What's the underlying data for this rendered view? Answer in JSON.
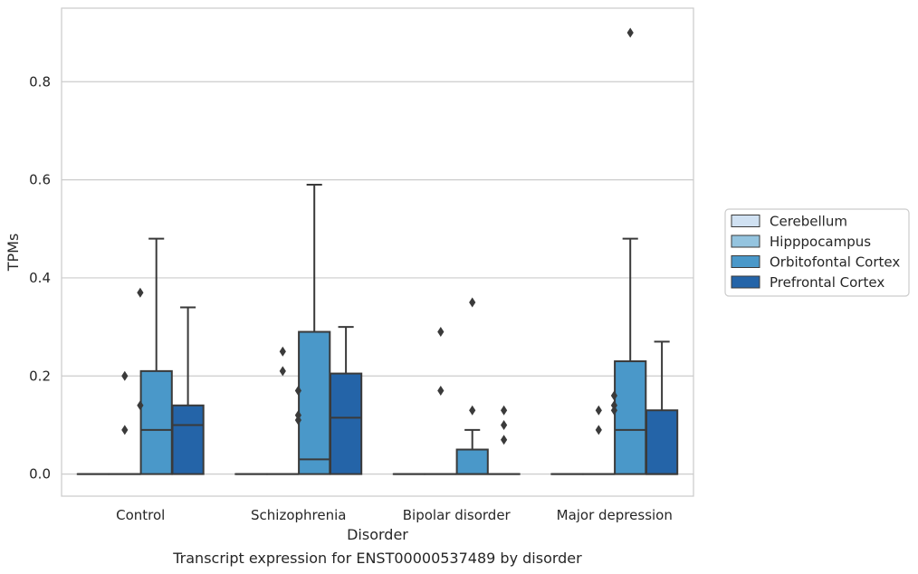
{
  "chart_data": {
    "type": "box",
    "title": "",
    "caption": "Transcript expression for ENST00000537489 by disorder",
    "xlabel": "Disorder",
    "ylabel": "TPMs",
    "ylim": [
      -0.045,
      0.95
    ],
    "yticks": [
      0.0,
      0.2,
      0.4,
      0.6,
      0.8
    ],
    "ytick_labels": [
      "0.0",
      "0.2",
      "0.4",
      "0.6",
      "0.8"
    ],
    "grid": "horizontal",
    "legend_position": "right",
    "categories": [
      "Control",
      "Schizophrenia",
      "Bipolar disorder",
      "Major depression"
    ],
    "series": [
      {
        "name": "Cerebellum",
        "color": "#d0e1f2",
        "boxes": [
          {
            "min": 0,
            "q1": 0,
            "median": 0,
            "q3": 0,
            "max": 0,
            "outliers": []
          },
          {
            "min": 0,
            "q1": 0,
            "median": 0,
            "q3": 0,
            "max": 0,
            "outliers": []
          },
          {
            "min": 0,
            "q1": 0,
            "median": 0,
            "q3": 0,
            "max": 0,
            "outliers": []
          },
          {
            "min": 0,
            "q1": 0,
            "median": 0,
            "q3": 0,
            "max": 0,
            "outliers": []
          }
        ]
      },
      {
        "name": "Hipppocampus",
        "color": "#94c4df",
        "boxes": [
          {
            "min": 0,
            "q1": 0,
            "median": 0,
            "q3": 0,
            "max": 0,
            "outliers": [
              0.09,
              0.2
            ]
          },
          {
            "min": 0,
            "q1": 0,
            "median": 0,
            "q3": 0,
            "max": 0,
            "outliers": [
              0.21,
              0.25
            ]
          },
          {
            "min": 0,
            "q1": 0,
            "median": 0,
            "q3": 0,
            "max": 0,
            "outliers": [
              0.17,
              0.29
            ]
          },
          {
            "min": 0,
            "q1": 0,
            "median": 0,
            "q3": 0,
            "max": 0,
            "outliers": [
              0.09,
              0.13
            ]
          }
        ]
      },
      {
        "name": "Orbitofontal Cortex",
        "color": "#4a98c9",
        "boxes": [
          {
            "min": 0,
            "q1": 0,
            "median": 0.09,
            "q3": 0.21,
            "max": 0.48,
            "outliers": []
          },
          {
            "min": 0,
            "q1": 0,
            "median": 0.03,
            "q3": 0.29,
            "max": 0.59,
            "outliers": []
          },
          {
            "min": 0,
            "q1": 0,
            "median": 0,
            "q3": 0.05,
            "max": 0.09,
            "outliers": [
              0.13,
              0.35
            ]
          },
          {
            "min": 0,
            "q1": 0,
            "median": 0.09,
            "q3": 0.23,
            "max": 0.48,
            "outliers": [
              0.9
            ]
          }
        ]
      },
      {
        "name": "Prefrontal Cortex",
        "color": "#2464a8",
        "boxes": [
          {
            "min": 0,
            "q1": 0,
            "median": 0.1,
            "q3": 0.14,
            "max": 0.34,
            "outliers": []
          },
          {
            "min": 0,
            "q1": 0,
            "median": 0.115,
            "q3": 0.205,
            "max": 0.3,
            "outliers": []
          },
          {
            "min": 0,
            "q1": 0,
            "median": 0,
            "q3": 0,
            "max": 0,
            "outliers": [
              0.07,
              0.1,
              0.13
            ]
          },
          {
            "min": 0,
            "q1": 0,
            "median": 0,
            "q3": 0.13,
            "max": 0.27,
            "outliers": []
          }
        ]
      }
    ],
    "extra_outliers": [
      {
        "category": "Control",
        "series": "Hipppocampus",
        "x_offset": "between Hipppocampus and Orbitofontal",
        "values": [
          0.14,
          0.37
        ]
      },
      {
        "category": "Schizophrenia",
        "series": "Hipppocampus",
        "x_offset": "between Hipppocampus and Orbitofontal",
        "values": [
          0.11,
          0.12,
          0.17
        ]
      },
      {
        "category": "Major depression",
        "series": "Hipppocampus",
        "x_offset": "between Hipppocampus and Orbitofontal",
        "values": [
          0.13,
          0.14,
          0.16
        ]
      }
    ]
  }
}
